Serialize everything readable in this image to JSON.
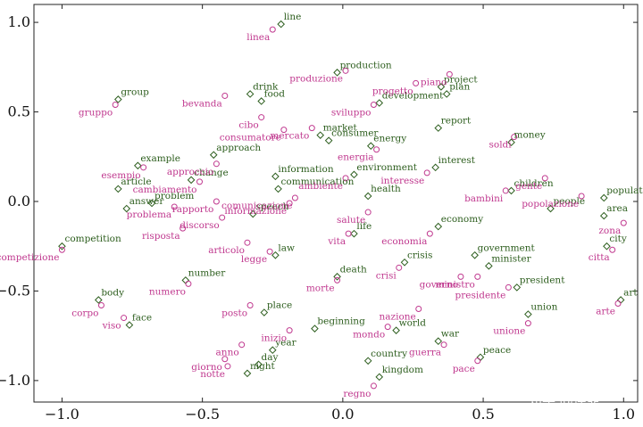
{
  "chart_data": {
    "type": "scatter",
    "title": "",
    "xlabel": "",
    "ylabel": "",
    "xlim": [
      -1.1,
      1.05
    ],
    "ylim": [
      -1.12,
      1.1
    ],
    "x_ticks": [
      -1.0,
      -0.5,
      0.0,
      0.5,
      1.0
    ],
    "y_ticks": [
      -1.0,
      -0.5,
      0.0,
      0.5,
      1.0
    ],
    "x_tick_labels": [
      "−1.0",
      "−0.5",
      "0.0",
      "0.5",
      "1.0"
    ],
    "y_tick_labels": [
      "−1.0",
      "−0.5",
      "0.0",
      "0.5",
      "1.0"
    ],
    "grid": false,
    "colors": {
      "english": "#2d5e1e",
      "italian": "#c0398f"
    },
    "series": [
      {
        "marker": "diamond",
        "points": [
          {
            "label": "line",
            "x": -0.22,
            "y": 0.99
          },
          {
            "label": "production",
            "x": -0.02,
            "y": 0.72
          },
          {
            "label": "project",
            "x": 0.35,
            "y": 0.64
          },
          {
            "label": "plan",
            "x": 0.37,
            "y": 0.6
          },
          {
            "label": "development",
            "x": 0.13,
            "y": 0.55
          },
          {
            "label": "group",
            "x": -0.8,
            "y": 0.57
          },
          {
            "label": "drink",
            "x": -0.33,
            "y": 0.6
          },
          {
            "label": "food",
            "x": -0.29,
            "y": 0.56
          },
          {
            "label": "report",
            "x": 0.34,
            "y": 0.41
          },
          {
            "label": "market",
            "x": -0.08,
            "y": 0.37
          },
          {
            "label": "consumer",
            "x": -0.05,
            "y": 0.34
          },
          {
            "label": "money",
            "x": 0.6,
            "y": 0.33
          },
          {
            "label": "energy",
            "x": 0.1,
            "y": 0.31
          },
          {
            "label": "approach",
            "x": -0.46,
            "y": 0.26
          },
          {
            "label": "example",
            "x": -0.73,
            "y": 0.2
          },
          {
            "label": "change",
            "x": -0.54,
            "y": 0.12
          },
          {
            "label": "interest",
            "x": 0.33,
            "y": 0.19
          },
          {
            "label": "information",
            "x": -0.24,
            "y": 0.14
          },
          {
            "label": "environment",
            "x": 0.04,
            "y": 0.15
          },
          {
            "label": "article",
            "x": -0.8,
            "y": 0.07
          },
          {
            "label": "communication",
            "x": -0.23,
            "y": 0.07
          },
          {
            "label": "health",
            "x": 0.09,
            "y": 0.03
          },
          {
            "label": "children",
            "x": 0.6,
            "y": 0.06
          },
          {
            "label": "population",
            "x": 0.93,
            "y": 0.02
          },
          {
            "label": "problem",
            "x": -0.68,
            "y": -0.01
          },
          {
            "label": "answer",
            "x": -0.77,
            "y": -0.04
          },
          {
            "label": "speech",
            "x": -0.32,
            "y": -0.07
          },
          {
            "label": "people",
            "x": 0.74,
            "y": -0.04
          },
          {
            "label": "area",
            "x": 0.93,
            "y": -0.08
          },
          {
            "label": "life",
            "x": 0.04,
            "y": -0.18
          },
          {
            "label": "economy",
            "x": 0.34,
            "y": -0.14
          },
          {
            "label": "city",
            "x": 0.94,
            "y": -0.25
          },
          {
            "label": "competition",
            "x": -1.0,
            "y": -0.25
          },
          {
            "label": "law",
            "x": -0.24,
            "y": -0.3
          },
          {
            "label": "government",
            "x": 0.47,
            "y": -0.3
          },
          {
            "label": "crisis",
            "x": 0.22,
            "y": -0.34
          },
          {
            "label": "minister",
            "x": 0.52,
            "y": -0.36
          },
          {
            "label": "death",
            "x": -0.02,
            "y": -0.42
          },
          {
            "label": "number",
            "x": -0.56,
            "y": -0.44
          },
          {
            "label": "president",
            "x": 0.62,
            "y": -0.48
          },
          {
            "label": "body",
            "x": -0.87,
            "y": -0.55
          },
          {
            "label": "art",
            "x": 0.99,
            "y": -0.55
          },
          {
            "label": "place",
            "x": -0.28,
            "y": -0.62
          },
          {
            "label": "union",
            "x": 0.66,
            "y": -0.63
          },
          {
            "label": "face",
            "x": -0.76,
            "y": -0.69
          },
          {
            "label": "beginning",
            "x": -0.1,
            "y": -0.71
          },
          {
            "label": "world",
            "x": 0.19,
            "y": -0.72
          },
          {
            "label": "year",
            "x": -0.25,
            "y": -0.83
          },
          {
            "label": "war",
            "x": 0.34,
            "y": -0.78
          },
          {
            "label": "country",
            "x": 0.09,
            "y": -0.89
          },
          {
            "label": "peace",
            "x": 0.49,
            "y": -0.87
          },
          {
            "label": "day",
            "x": -0.3,
            "y": -0.91
          },
          {
            "label": "night",
            "x": -0.34,
            "y": -0.96
          },
          {
            "label": "kingdom",
            "x": 0.13,
            "y": -0.98
          }
        ]
      },
      {
        "marker": "circle",
        "points": [
          {
            "label": "linea",
            "x": -0.25,
            "y": 0.96
          },
          {
            "label": "produzione",
            "x": 0.01,
            "y": 0.73
          },
          {
            "label": "piano",
            "x": 0.38,
            "y": 0.71
          },
          {
            "label": "progetto",
            "x": 0.26,
            "y": 0.66
          },
          {
            "label": "sviluppo",
            "x": 0.11,
            "y": 0.54
          },
          {
            "label": "gruppo",
            "x": -0.81,
            "y": 0.54
          },
          {
            "label": "bevanda",
            "x": -0.42,
            "y": 0.59
          },
          {
            "label": "cibo",
            "x": -0.29,
            "y": 0.47
          },
          {
            "label": "mercato",
            "x": -0.11,
            "y": 0.41
          },
          {
            "label": "consumatore",
            "x": -0.21,
            "y": 0.4
          },
          {
            "label": "soldi",
            "x": 0.61,
            "y": 0.36
          },
          {
            "label": "energia",
            "x": 0.12,
            "y": 0.29
          },
          {
            "label": "approccio",
            "x": -0.45,
            "y": 0.21
          },
          {
            "label": "esempio",
            "x": -0.71,
            "y": 0.19
          },
          {
            "label": "cambiamento",
            "x": -0.51,
            "y": 0.11
          },
          {
            "label": "interesse",
            "x": 0.3,
            "y": 0.16
          },
          {
            "label": "ambiente",
            "x": 0.01,
            "y": 0.13
          },
          {
            "label": "gente",
            "x": 0.72,
            "y": 0.13
          },
          {
            "label": "bambini",
            "x": 0.58,
            "y": 0.06
          },
          {
            "label": "popolazione",
            "x": 0.85,
            "y": 0.03
          },
          {
            "label": "comunicazione",
            "x": -0.17,
            "y": 0.02
          },
          {
            "label": "informazione",
            "x": -0.19,
            "y": -0.01
          },
          {
            "label": "rapporto",
            "x": -0.45,
            "y": 0.0
          },
          {
            "label": "problema",
            "x": -0.6,
            "y": -0.03
          },
          {
            "label": "discorso",
            "x": -0.43,
            "y": -0.09
          },
          {
            "label": "salute",
            "x": 0.09,
            "y": -0.06
          },
          {
            "label": "risposta",
            "x": -0.57,
            "y": -0.15
          },
          {
            "label": "vita",
            "x": 0.02,
            "y": -0.18
          },
          {
            "label": "economia",
            "x": 0.31,
            "y": -0.18
          },
          {
            "label": "zona",
            "x": 1.0,
            "y": -0.12
          },
          {
            "label": "citta",
            "x": 0.96,
            "y": -0.27
          },
          {
            "label": "articolo",
            "x": -0.34,
            "y": -0.23
          },
          {
            "label": "legge",
            "x": -0.26,
            "y": -0.28
          },
          {
            "label": "competizione",
            "x": -1.0,
            "y": -0.27
          },
          {
            "label": "crisi",
            "x": 0.2,
            "y": -0.37
          },
          {
            "label": "governo",
            "x": 0.42,
            "y": -0.42
          },
          {
            "label": "ministro",
            "x": 0.48,
            "y": -0.42
          },
          {
            "label": "morte",
            "x": -0.02,
            "y": -0.44
          },
          {
            "label": "presidente",
            "x": 0.59,
            "y": -0.48
          },
          {
            "label": "numero",
            "x": -0.55,
            "y": -0.46
          },
          {
            "label": "corpo",
            "x": -0.86,
            "y": -0.58
          },
          {
            "label": "arte",
            "x": 0.98,
            "y": -0.57
          },
          {
            "label": "posto",
            "x": -0.33,
            "y": -0.58
          },
          {
            "label": "nazione",
            "x": 0.27,
            "y": -0.6
          },
          {
            "label": "viso",
            "x": -0.78,
            "y": -0.65
          },
          {
            "label": "unione",
            "x": 0.66,
            "y": -0.68
          },
          {
            "label": "mondo",
            "x": 0.16,
            "y": -0.7
          },
          {
            "label": "inizio",
            "x": -0.19,
            "y": -0.72
          },
          {
            "label": "anno",
            "x": -0.36,
            "y": -0.8
          },
          {
            "label": "guerra",
            "x": 0.36,
            "y": -0.8
          },
          {
            "label": "giorno",
            "x": -0.42,
            "y": -0.88
          },
          {
            "label": "notte",
            "x": -0.41,
            "y": -0.92
          },
          {
            "label": "pace",
            "x": 0.48,
            "y": -0.89
          },
          {
            "label": "regno",
            "x": 0.11,
            "y": -1.03
          }
        ]
      }
    ]
  },
  "watermark": "知乎 @徐鼎"
}
